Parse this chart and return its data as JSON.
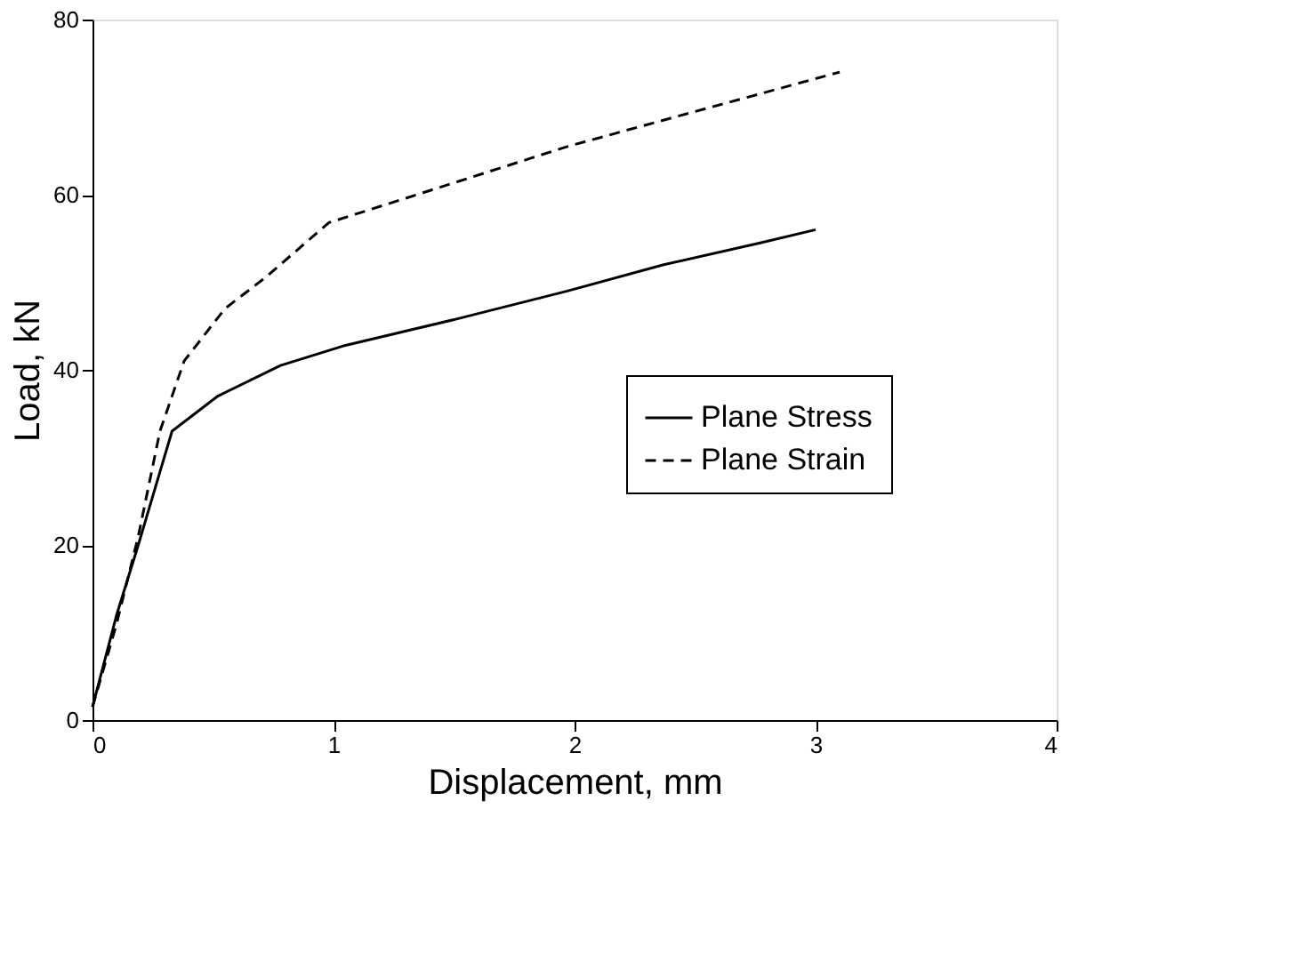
{
  "chart_data": {
    "type": "line",
    "xlabel": "Displacement,  mm",
    "ylabel": "Load, kN",
    "xlim": [
      0,
      4
    ],
    "xticks": [
      0,
      1,
      2,
      3,
      4
    ],
    "ylim": [
      0,
      80
    ],
    "yticks": [
      0,
      20,
      40,
      60,
      80
    ],
    "grid": false,
    "legend": "right",
    "marker": "none",
    "series": [
      {
        "name": "Plane Stress",
        "color": "#000000",
        "line_style": "solid",
        "x": [
          0,
          0.1,
          0.19,
          0.33,
          0.52,
          0.78,
          1.05,
          1.51,
          1.97,
          2.37,
          2.77,
          3.0
        ],
        "values": [
          1.5,
          12,
          20,
          33,
          37,
          40.5,
          42.8,
          45.8,
          49,
          52,
          54.5,
          56
        ]
      },
      {
        "name": "Plane Strain",
        "color": "#000000",
        "line_style": "dashed",
        "x": [
          0,
          0.1,
          0.19,
          0.28,
          0.38,
          0.55,
          0.72,
          0.98,
          1.38,
          1.97,
          2.5,
          3.1
        ],
        "values": [
          1.5,
          11,
          21,
          33,
          41,
          47,
          50.6,
          56.8,
          60.3,
          65.5,
          69.5,
          74
        ]
      }
    ]
  }
}
